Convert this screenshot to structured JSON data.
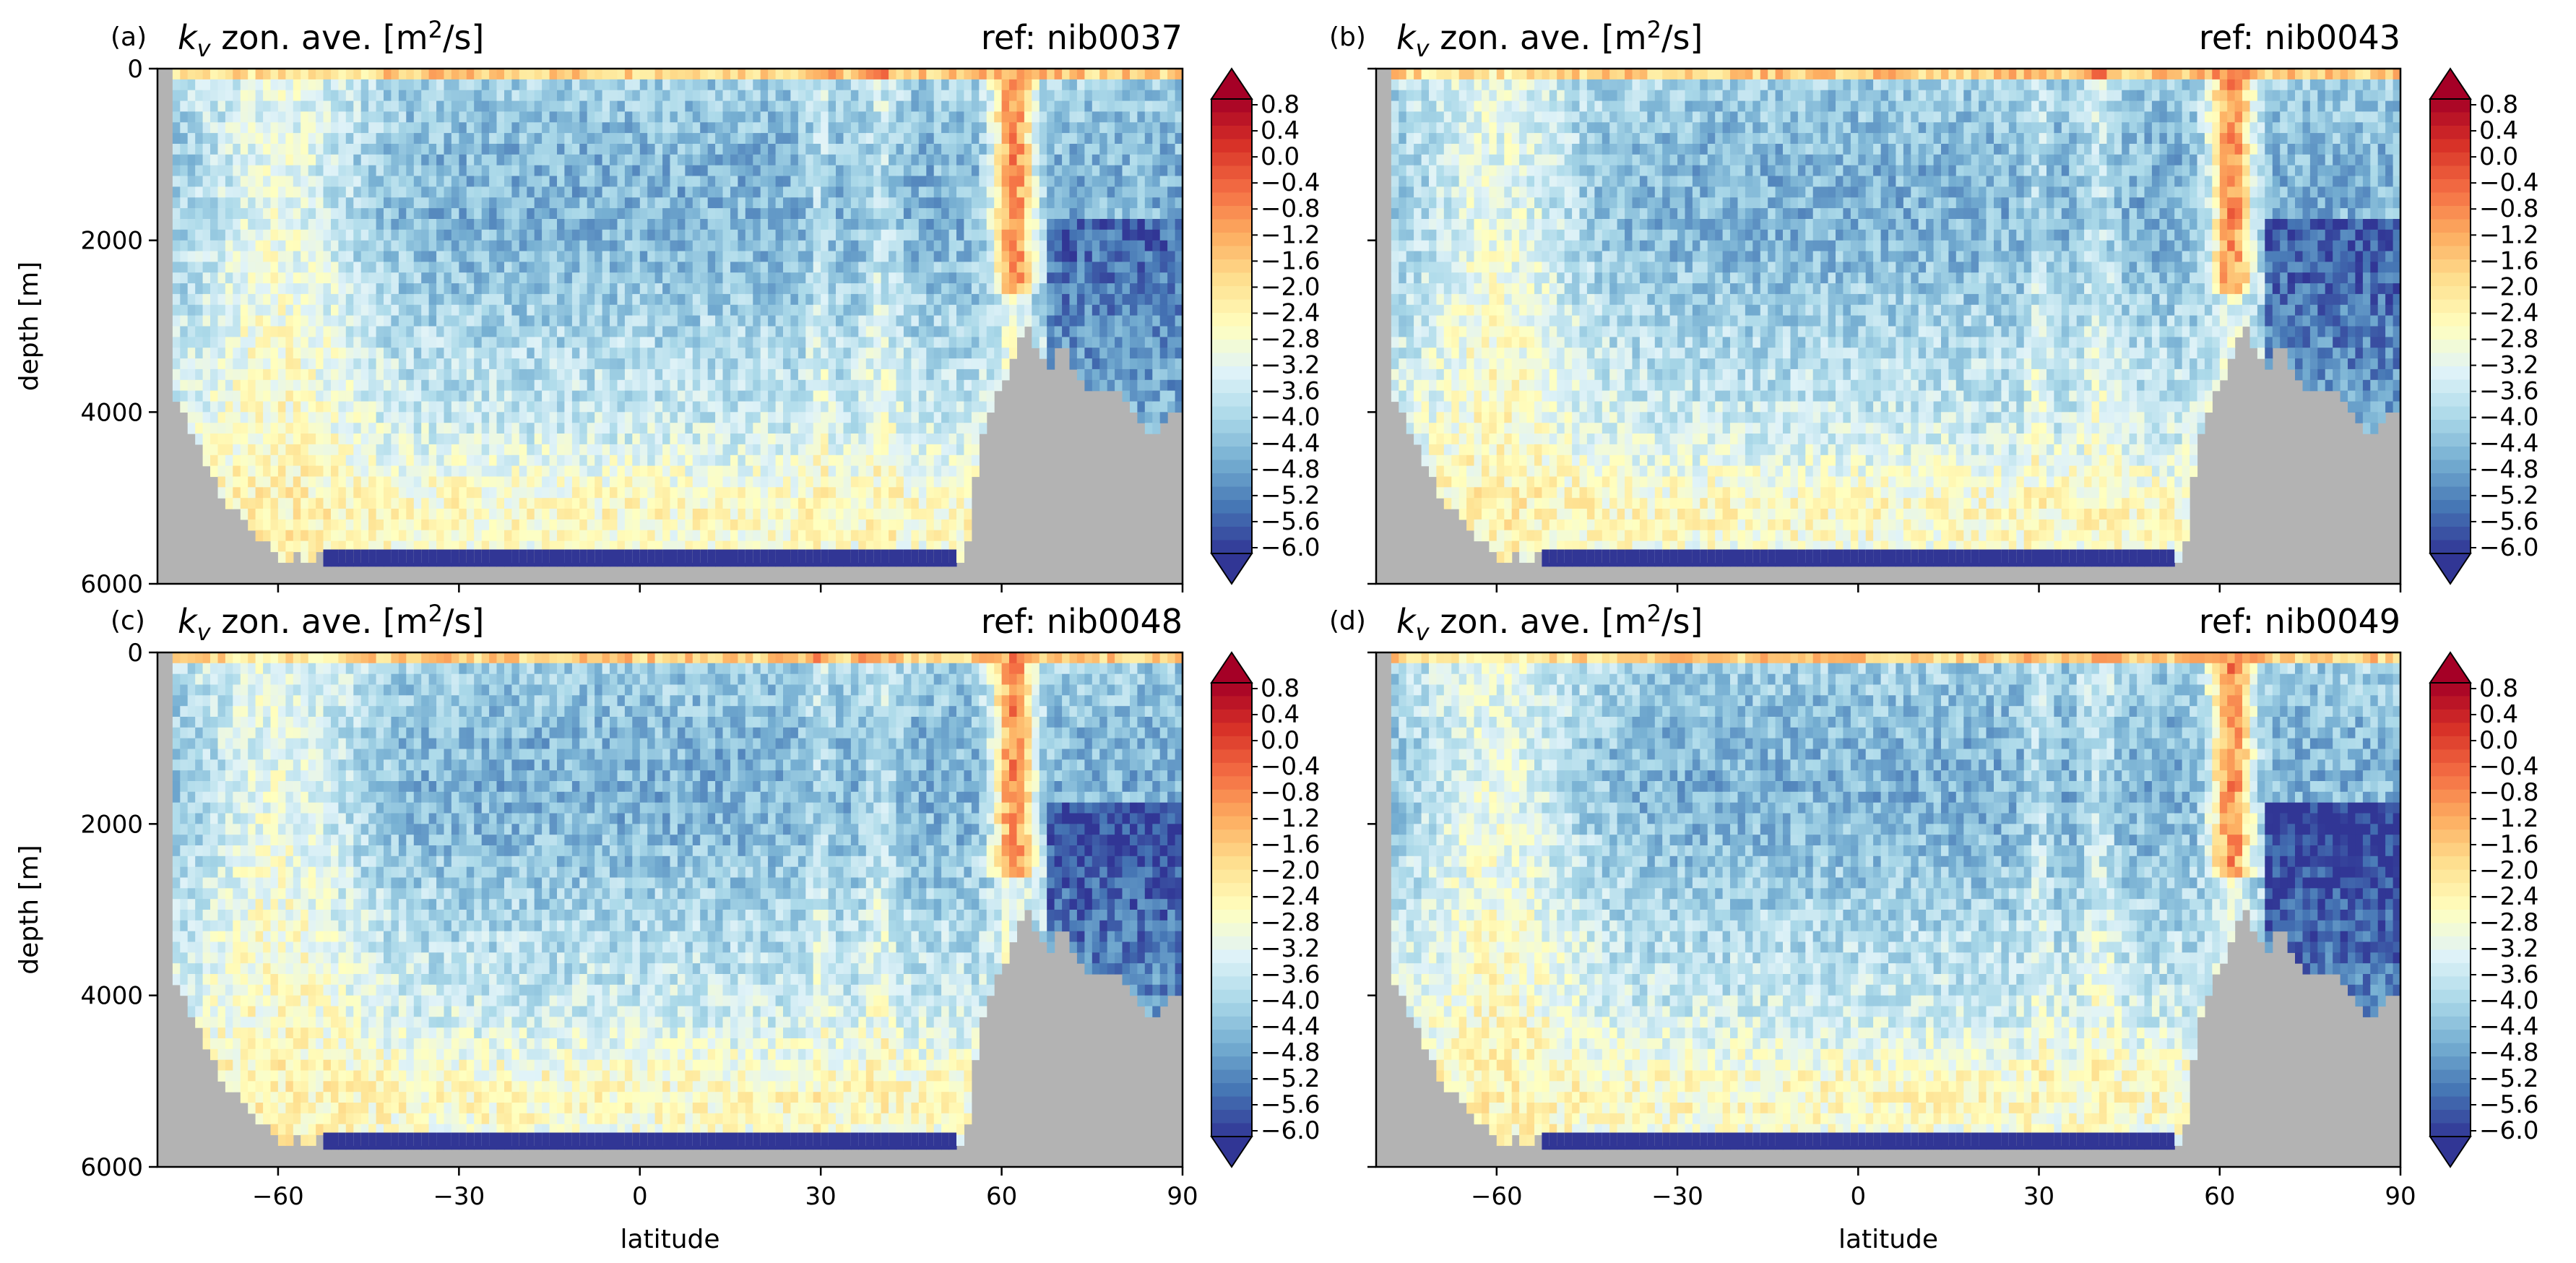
{
  "colors": {
    "land": "#b3b3b3",
    "background": "#ffffff",
    "frame": "#000000",
    "colormap": [
      "#313695",
      "#4575b4",
      "#74add1",
      "#abd9e9",
      "#e0f3f8",
      "#ffffbf",
      "#fee090",
      "#fdae61",
      "#f46d43",
      "#d73027",
      "#a50026"
    ]
  },
  "chart_data": [
    {
      "type": "heatmap",
      "panel_label": "(a)",
      "title": "k",
      "title_sub": "v",
      "title_rest": " zon. ave. [m",
      "title_sup": "2",
      "title_end": "/s]",
      "ref": "ref: nib0037",
      "ylabel": "depth [m]",
      "xlabel": "",
      "show_xticklabels": false,
      "xlim": [
        -80,
        90
      ],
      "ylim": [
        6000,
        0
      ],
      "xticks": [
        -60,
        -30,
        0,
        30,
        60,
        90
      ],
      "yticks": [
        0,
        2000,
        4000,
        6000
      ],
      "xtick_labels": [
        "",
        "",
        "",
        "",
        "",
        ""
      ],
      "ytick_labels": [
        "0",
        "2000",
        "4000",
        "6000"
      ],
      "colorbar": {
        "vmin": -6.0,
        "vmax": 0.8,
        "extend": "both",
        "ticks": [
          0.8,
          0.4,
          0.0,
          -0.4,
          -0.8,
          -1.2,
          -1.6,
          -2.0,
          -2.4,
          -2.8,
          -3.2,
          -3.6,
          -4.0,
          -4.4,
          -4.8,
          -5.2,
          -5.6,
          -6.0
        ],
        "tick_labels": [
          "0.8",
          "0.4",
          "0.0",
          "−0.4",
          "−0.8",
          "−1.2",
          "−1.6",
          "−2.0",
          "−2.4",
          "−2.8",
          "−3.2",
          "−3.6",
          "−4.0",
          "−4.4",
          "−4.8",
          "−5.2",
          "−5.6",
          "−6.0"
        ]
      },
      "bathymetry": {
        "lat": [
          -78,
          -76,
          -75,
          -74,
          -72,
          -70,
          -68,
          -65,
          -63,
          -61,
          -59,
          -57,
          -55,
          -53,
          -50,
          54,
          55,
          56,
          58,
          60,
          62,
          63,
          64,
          65,
          66,
          68,
          70,
          72,
          74,
          76,
          78,
          80,
          82,
          84,
          86,
          88,
          90
        ],
        "depth": [
          3800,
          3900,
          4000,
          4300,
          4600,
          4900,
          5100,
          5300,
          5500,
          5600,
          5800,
          5600,
          5800,
          5600,
          5800,
          5800,
          5000,
          4500,
          4000,
          3700,
          3400,
          3200,
          3000,
          3000,
          3300,
          3500,
          3200,
          3500,
          3800,
          3800,
          3800,
          3800,
          4000,
          4200,
          4300,
          4000,
          4000
        ]
      }
    },
    {
      "type": "heatmap",
      "panel_label": "(b)",
      "title": "k",
      "title_sub": "v",
      "title_rest": " zon. ave. [m",
      "title_sup": "2",
      "title_end": "/s]",
      "ref": "ref: nib0043",
      "ylabel": "",
      "xlabel": "",
      "show_xticklabels": false,
      "xlim": [
        -80,
        90
      ],
      "ylim": [
        6000,
        0
      ],
      "xticks": [
        -60,
        -30,
        0,
        30,
        60,
        90
      ],
      "yticks": [
        0,
        2000,
        4000,
        6000
      ],
      "xtick_labels": [
        "",
        "",
        "",
        "",
        "",
        ""
      ],
      "ytick_labels": [
        "",
        "",
        "",
        ""
      ],
      "colorbar": {
        "vmin": -6.0,
        "vmax": 0.8,
        "extend": "both",
        "ticks": [
          0.8,
          0.4,
          0.0,
          -0.4,
          -0.8,
          -1.2,
          -1.6,
          -2.0,
          -2.4,
          -2.8,
          -3.2,
          -3.6,
          -4.0,
          -4.4,
          -4.8,
          -5.2,
          -5.6,
          -6.0
        ],
        "tick_labels": [
          "0.8",
          "0.4",
          "0.0",
          "−0.4",
          "−0.8",
          "−1.2",
          "−1.6",
          "−2.0",
          "−2.4",
          "−2.8",
          "−3.2",
          "−3.6",
          "−4.0",
          "−4.4",
          "−4.8",
          "−5.2",
          "−5.6",
          "−6.0"
        ]
      },
      "bathymetry": {
        "lat": [
          -78,
          -76,
          -75,
          -74,
          -72,
          -70,
          -68,
          -65,
          -63,
          -61,
          -59,
          -57,
          -55,
          -53,
          -50,
          54,
          55,
          56,
          58,
          60,
          62,
          63,
          64,
          65,
          66,
          68,
          70,
          72,
          74,
          76,
          78,
          80,
          82,
          84,
          86,
          88,
          90
        ],
        "depth": [
          3800,
          3900,
          4000,
          4300,
          4600,
          4900,
          5100,
          5300,
          5500,
          5600,
          5800,
          5600,
          5800,
          5600,
          5800,
          5800,
          5000,
          4500,
          4000,
          3700,
          3400,
          3200,
          3000,
          3000,
          3300,
          3500,
          3200,
          3500,
          3800,
          3800,
          3800,
          3800,
          4000,
          4200,
          4300,
          4000,
          4000
        ]
      }
    },
    {
      "type": "heatmap",
      "panel_label": "(c)",
      "title": "k",
      "title_sub": "v",
      "title_rest": " zon. ave. [m",
      "title_sup": "2",
      "title_end": "/s]",
      "ref": "ref: nib0048",
      "ylabel": "depth [m]",
      "xlabel": "latitude",
      "show_xticklabels": true,
      "xlim": [
        -80,
        90
      ],
      "ylim": [
        6000,
        0
      ],
      "xticks": [
        -60,
        -30,
        0,
        30,
        60,
        90
      ],
      "yticks": [
        0,
        2000,
        4000,
        6000
      ],
      "xtick_labels": [
        "−60",
        "−30",
        "0",
        "30",
        "60",
        "90"
      ],
      "ytick_labels": [
        "0",
        "2000",
        "4000",
        "6000"
      ],
      "colorbar": {
        "vmin": -6.0,
        "vmax": 0.8,
        "extend": "both",
        "ticks": [
          0.8,
          0.4,
          0.0,
          -0.4,
          -0.8,
          -1.2,
          -1.6,
          -2.0,
          -2.4,
          -2.8,
          -3.2,
          -3.6,
          -4.0,
          -4.4,
          -4.8,
          -5.2,
          -5.6,
          -6.0
        ],
        "tick_labels": [
          "0.8",
          "0.4",
          "0.0",
          "−0.4",
          "−0.8",
          "−1.2",
          "−1.6",
          "−2.0",
          "−2.4",
          "−2.8",
          "−3.2",
          "−3.6",
          "−4.0",
          "−4.4",
          "−4.8",
          "−5.2",
          "−5.6",
          "−6.0"
        ]
      },
      "bathymetry": {
        "lat": [
          -78,
          -76,
          -75,
          -74,
          -72,
          -70,
          -68,
          -65,
          -63,
          -61,
          -59,
          -57,
          -55,
          -53,
          -50,
          54,
          55,
          56,
          58,
          60,
          62,
          63,
          64,
          65,
          66,
          68,
          70,
          72,
          74,
          76,
          78,
          80,
          82,
          84,
          86,
          88,
          90
        ],
        "depth": [
          3800,
          3900,
          4000,
          4300,
          4600,
          4900,
          5100,
          5300,
          5500,
          5600,
          5800,
          5600,
          5800,
          5600,
          5800,
          5800,
          5000,
          4500,
          4000,
          3700,
          3400,
          3200,
          3000,
          3000,
          3300,
          3500,
          3200,
          3500,
          3800,
          3800,
          3800,
          3800,
          4000,
          4200,
          4300,
          4000,
          4000
        ]
      }
    },
    {
      "type": "heatmap",
      "panel_label": "(d)",
      "title": "k",
      "title_sub": "v",
      "title_rest": " zon. ave. [m",
      "title_sup": "2",
      "title_end": "/s]",
      "ref": "ref: nib0049",
      "ylabel": "",
      "xlabel": "latitude",
      "show_xticklabels": true,
      "xlim": [
        -80,
        90
      ],
      "ylim": [
        6000,
        0
      ],
      "xticks": [
        -60,
        -30,
        0,
        30,
        60,
        90
      ],
      "yticks": [
        0,
        2000,
        4000,
        6000
      ],
      "xtick_labels": [
        "−60",
        "−30",
        "0",
        "30",
        "60",
        "90"
      ],
      "ytick_labels": [
        "",
        "",
        "",
        ""
      ],
      "colorbar": {
        "vmin": -6.0,
        "vmax": 0.8,
        "extend": "both",
        "ticks": [
          0.8,
          0.4,
          0.0,
          -0.4,
          -0.8,
          -1.2,
          -1.6,
          -2.0,
          -2.4,
          -2.8,
          -3.2,
          -3.6,
          -4.0,
          -4.4,
          -4.8,
          -5.2,
          -5.6,
          -6.0
        ],
        "tick_labels": [
          "0.8",
          "0.4",
          "0.0",
          "−0.4",
          "−0.8",
          "−1.2",
          "−1.6",
          "−2.0",
          "−2.4",
          "−2.8",
          "−3.2",
          "−3.6",
          "−4.0",
          "−4.4",
          "−4.8",
          "−5.2",
          "−5.6",
          "−6.0"
        ]
      },
      "bathymetry": {
        "lat": [
          -78,
          -76,
          -75,
          -74,
          -72,
          -70,
          -68,
          -65,
          -63,
          -61,
          -59,
          -57,
          -55,
          -53,
          -50,
          54,
          55,
          56,
          58,
          60,
          62,
          63,
          64,
          65,
          66,
          68,
          70,
          72,
          74,
          76,
          78,
          80,
          82,
          84,
          86,
          88,
          90
        ],
        "depth": [
          3800,
          3900,
          4000,
          4300,
          4600,
          4900,
          5100,
          5300,
          5500,
          5600,
          5800,
          5600,
          5800,
          5600,
          5800,
          5800,
          5000,
          4500,
          4000,
          3700,
          3400,
          3200,
          3000,
          3000,
          3300,
          3500,
          3200,
          3500,
          3800,
          3800,
          3800,
          3800,
          4000,
          4200,
          4300,
          4000,
          4000
        ]
      }
    }
  ]
}
